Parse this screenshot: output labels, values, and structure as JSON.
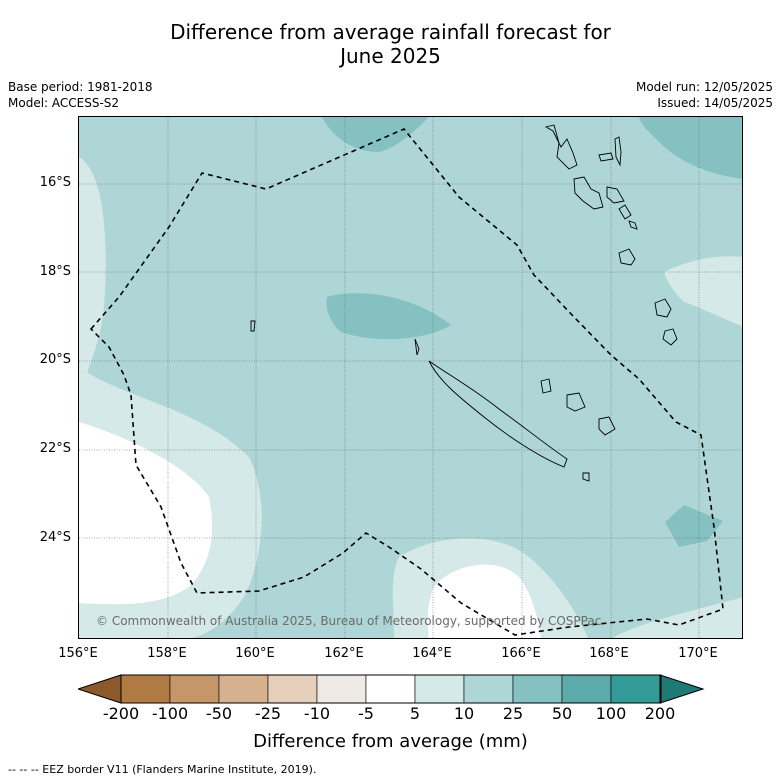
{
  "title_line1": "Difference from average rainfall forecast for",
  "title_line2": "June 2025",
  "base_period": "Base period: 1981-2018",
  "model": "Model: ACCESS-S2",
  "model_run": "Model run: 12/05/2025",
  "issued": "Issued: 14/05/2025",
  "lat_labels": [
    "16°S",
    "18°S",
    "20°S",
    "22°S",
    "24°S"
  ],
  "lon_labels": [
    "156°E",
    "158°E",
    "160°E",
    "162°E",
    "164°E",
    "166°E",
    "168°E",
    "170°E"
  ],
  "copyright": "© Commonwealth of Australia 2025, Bureau of Meteorology, supported by COSPPac",
  "colorbar": {
    "ticks": [
      "-200",
      "-100",
      "-50",
      "-25",
      "-10",
      "-5",
      "5",
      "10",
      "25",
      "50",
      "100",
      "200"
    ],
    "colors": [
      "#8c5a2a",
      "#b07a45",
      "#c59669",
      "#d5b18f",
      "#e6d0bc",
      "#efeae6",
      "#ffffff",
      "#d5e9e8",
      "#aed6d6",
      "#86c1c1",
      "#5caaaa",
      "#329b97",
      "#1f7a76"
    ],
    "title": "Difference from average (mm)"
  },
  "footer": "--  --  -- EEZ border V11 (Flanders Marine Institute, 2019)."
}
